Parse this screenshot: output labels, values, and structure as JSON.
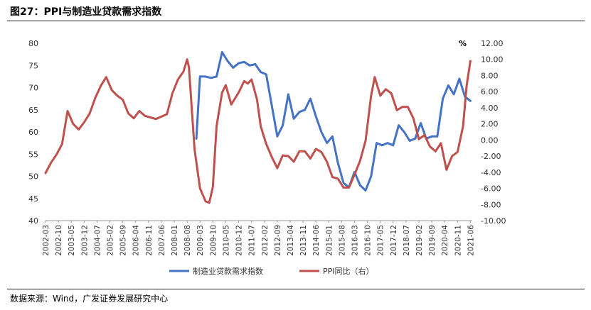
{
  "figure": {
    "title": "图27：PPI与制造业贷款需求指数",
    "source": "数据来源：Wind，广发证券发展研究中心"
  },
  "colors": {
    "series1": "#4472C4",
    "series2": "#C0504D",
    "axis": "#999999",
    "text": "#333333"
  },
  "chart_data": {
    "type": "line",
    "title": "",
    "xlabel": "",
    "x_tick_labels": [
      "2002-03",
      "2002-10",
      "2003-05",
      "2003-12",
      "2004-07",
      "2005-02",
      "2005-09",
      "2006-04",
      "2006-11",
      "2007-06",
      "2008-01",
      "2008-08",
      "2009-03",
      "2009-10",
      "2010-05",
      "2010-12",
      "2011-07",
      "2012-02",
      "2012-09",
      "2013-04",
      "2013-11",
      "2014-06",
      "2015-01",
      "2015-08",
      "2016-03",
      "2016-10",
      "2017-05",
      "2017-12",
      "2018-07",
      "2019-02",
      "2019-09",
      "2020-04",
      "2020-11",
      "2021-06"
    ],
    "y_left": {
      "ticks": [
        40,
        45,
        50,
        55,
        60,
        65,
        70,
        75,
        80
      ],
      "min": 40,
      "max": 80,
      "unit": ""
    },
    "y_right": {
      "ticks": [
        "-10.00",
        "-8.00",
        "-6.00",
        "-4.00",
        "-2.00",
        "0.00",
        "2.00",
        "4.00",
        "6.00",
        "8.00",
        "10.00",
        "12.00"
      ],
      "min": -10,
      "max": 12,
      "unit": "%"
    },
    "legend_position": "bottom",
    "series": [
      {
        "name": "制造业贷款需求指数",
        "axis": "left",
        "x": [
          "2009-01",
          "2009-03",
          "2009-06",
          "2009-09",
          "2009-12",
          "2010-03",
          "2010-06",
          "2010-09",
          "2010-12",
          "2011-03",
          "2011-06",
          "2011-09",
          "2011-12",
          "2012-03",
          "2012-06",
          "2012-09",
          "2012-12",
          "2013-03",
          "2013-06",
          "2013-09",
          "2013-12",
          "2014-03",
          "2014-06",
          "2014-09",
          "2014-12",
          "2015-03",
          "2015-06",
          "2015-09",
          "2015-12",
          "2016-03",
          "2016-06",
          "2016-09",
          "2016-12",
          "2017-03",
          "2017-06",
          "2017-09",
          "2017-12",
          "2018-03",
          "2018-06",
          "2018-09",
          "2018-12",
          "2019-03",
          "2019-06",
          "2019-09",
          "2019-12",
          "2020-03",
          "2020-06",
          "2020-09",
          "2020-12",
          "2021-03",
          "2021-06"
        ],
        "values": [
          58.5,
          72.5,
          72.5,
          72.2,
          72.5,
          78.0,
          76.0,
          74.5,
          75.5,
          75.8,
          75.0,
          75.3,
          73.5,
          73.0,
          66.0,
          59.0,
          61.5,
          68.5,
          63.0,
          64.5,
          65.0,
          67.5,
          63.5,
          60.0,
          57.5,
          59.0,
          53.0,
          48.5,
          47.5,
          51.0,
          48.0,
          46.8,
          50.0,
          57.5,
          57.0,
          57.5,
          57.0,
          61.5,
          60.0,
          58.0,
          58.5,
          62.0,
          58.5,
          59.0,
          59.0,
          67.5,
          70.5,
          68.5,
          72.0,
          68.0,
          67.0
        ]
      },
      {
        "name": "PPI同比（右）",
        "axis": "right",
        "x": [
          "2002-03",
          "2002-06",
          "2002-09",
          "2002-12",
          "2003-03",
          "2003-06",
          "2003-09",
          "2003-12",
          "2004-03",
          "2004-06",
          "2004-09",
          "2004-12",
          "2005-03",
          "2005-06",
          "2005-09",
          "2005-12",
          "2006-03",
          "2006-06",
          "2006-09",
          "2006-12",
          "2007-03",
          "2007-06",
          "2007-09",
          "2007-12",
          "2008-03",
          "2008-06",
          "2008-08",
          "2008-09",
          "2008-12",
          "2009-03",
          "2009-06",
          "2009-08",
          "2009-10",
          "2009-12",
          "2010-03",
          "2010-05",
          "2010-08",
          "2010-12",
          "2011-03",
          "2011-05",
          "2011-07",
          "2011-10",
          "2011-12",
          "2012-03",
          "2012-06",
          "2012-09",
          "2012-12",
          "2013-03",
          "2013-06",
          "2013-09",
          "2013-12",
          "2014-03",
          "2014-06",
          "2014-09",
          "2014-12",
          "2015-03",
          "2015-06",
          "2015-09",
          "2015-12",
          "2016-03",
          "2016-06",
          "2016-09",
          "2016-12",
          "2017-02",
          "2017-05",
          "2017-08",
          "2017-11",
          "2018-02",
          "2018-05",
          "2018-08",
          "2018-11",
          "2019-02",
          "2019-05",
          "2019-08",
          "2019-11",
          "2020-02",
          "2020-05",
          "2020-08",
          "2020-11",
          "2021-02",
          "2021-04",
          "2021-06"
        ],
        "values": [
          -4.1,
          -2.8,
          -1.8,
          -0.5,
          3.6,
          2.0,
          1.3,
          2.2,
          3.3,
          5.2,
          6.7,
          7.8,
          6.2,
          5.5,
          5.0,
          3.3,
          2.7,
          3.6,
          3.0,
          2.8,
          2.6,
          2.9,
          3.2,
          5.8,
          7.5,
          8.5,
          10.0,
          9.0,
          -1.1,
          -6.0,
          -7.6,
          -7.8,
          -5.8,
          1.7,
          5.9,
          6.8,
          4.4,
          5.9,
          7.3,
          7.0,
          7.5,
          5.0,
          1.7,
          -0.5,
          -2.1,
          -3.5,
          -1.9,
          -2.0,
          -2.7,
          -1.4,
          -1.4,
          -2.3,
          -1.1,
          -1.5,
          -2.7,
          -4.6,
          -4.8,
          -5.9,
          -5.9,
          -4.3,
          -2.6,
          -0.1,
          5.5,
          7.8,
          5.5,
          6.3,
          5.8,
          3.7,
          4.1,
          4.1,
          2.7,
          0.1,
          0.6,
          -0.8,
          -1.4,
          -0.4,
          -3.7,
          -2.0,
          -1.5,
          1.7,
          6.8,
          9.8
        ]
      }
    ]
  }
}
